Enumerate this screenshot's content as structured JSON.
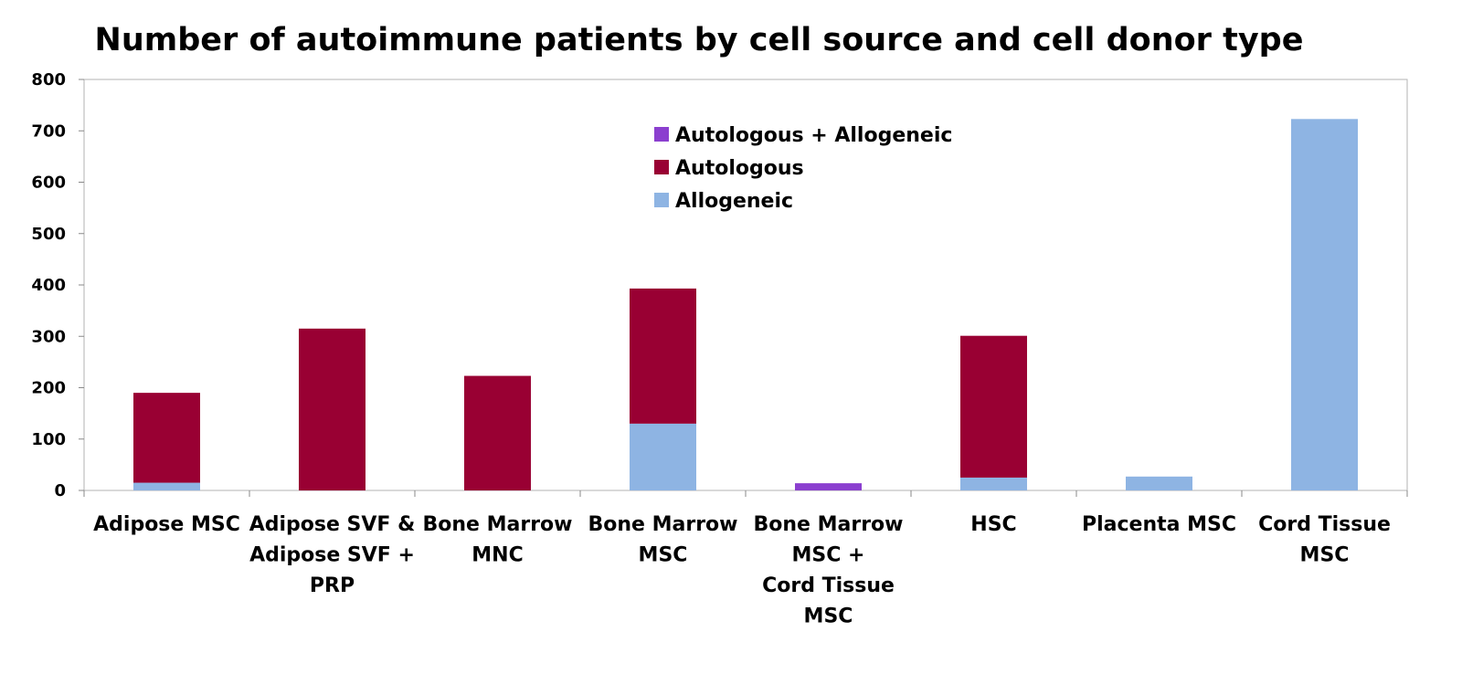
{
  "chart_data": {
    "type": "bar",
    "stacked": true,
    "title": "Number of autoimmune patients by cell source and cell donor type",
    "xlabel": "",
    "ylabel": "",
    "ylim": [
      0,
      800
    ],
    "yticks": [
      0,
      100,
      200,
      300,
      400,
      500,
      600,
      700,
      800
    ],
    "grid": false,
    "legend_position": "top-center",
    "categories": [
      [
        "Adipose MSC"
      ],
      [
        "Adipose SVF &",
        "Adipose SVF +",
        "PRP"
      ],
      [
        "Bone Marrow",
        "MNC"
      ],
      [
        "Bone Marrow",
        "MSC"
      ],
      [
        "Bone Marrow",
        "MSC +",
        "Cord Tissue",
        "MSC"
      ],
      [
        "HSC"
      ],
      [
        "Placenta MSC"
      ],
      [
        "Cord Tissue",
        "MSC"
      ]
    ],
    "series": [
      {
        "name": "Allogeneic",
        "color": "#8EB4E3",
        "values": [
          15,
          0,
          0,
          130,
          0,
          25,
          27,
          723
        ]
      },
      {
        "name": "Autologous",
        "color": "#990033",
        "values": [
          175,
          315,
          223,
          263,
          0,
          276,
          0,
          0
        ]
      },
      {
        "name": "Autologous + Allogeneic",
        "color": "#8B3FCF",
        "values": [
          0,
          0,
          0,
          0,
          14,
          0,
          0,
          0
        ]
      }
    ],
    "legend_order": [
      "Autologous + Allogeneic",
      "Autologous",
      "Allogeneic"
    ]
  }
}
